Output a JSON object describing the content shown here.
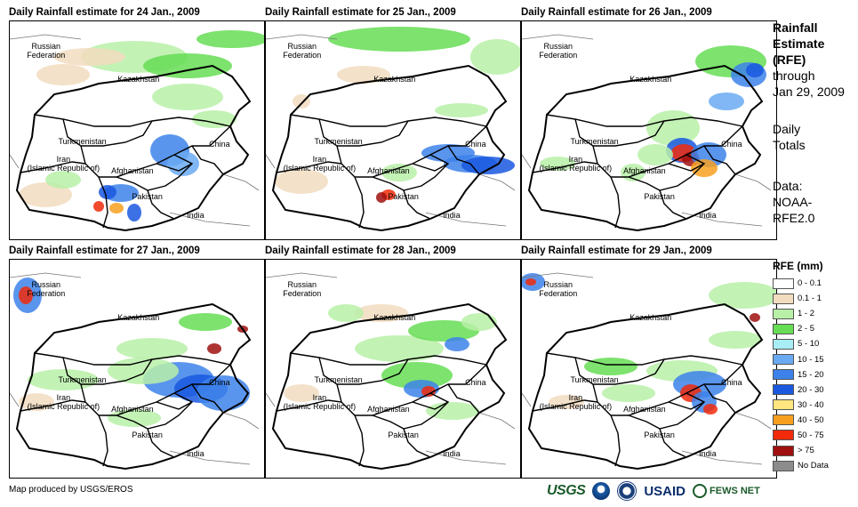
{
  "panels": [
    {
      "title": "Daily Rainfall estimate for 24 Jan., 2009"
    },
    {
      "title": "Daily Rainfall estimate for 25 Jan., 2009"
    },
    {
      "title": "Daily Rainfall estimate for 26 Jan., 2009"
    },
    {
      "title": "Daily Rainfall estimate for 27 Jan., 2009"
    },
    {
      "title": "Daily Rainfall estimate for 28 Jan., 2009"
    },
    {
      "title": "Daily Rainfall estimate for 29 Jan., 2009"
    }
  ],
  "map_labels": {
    "russia": "Russian\nFederation",
    "kazakhstan": "Kazakhstan",
    "turkmenistan": "Turkmenistan",
    "iran": "Iran\n(Islamic Republic of)",
    "afghanistan": "Afghanistan",
    "pakistan": "Pakistan",
    "china": "China",
    "india": "India"
  },
  "side": {
    "title": "Rainfall Estimate (RFE)",
    "through": "through",
    "date": "Jan 29, 2009",
    "daily": "Daily",
    "totals": "Totals",
    "data_label": "Data:",
    "data_source": "NOAA-RFE2.0"
  },
  "legend": {
    "title": "RFE (mm)",
    "items": [
      {
        "label": "0 - 0.1",
        "color": "#ffffff"
      },
      {
        "label": "0.1 - 1",
        "color": "#f2dcbf"
      },
      {
        "label": "1 - 2",
        "color": "#b8f0a8"
      },
      {
        "label": "2 - 5",
        "color": "#66dd55"
      },
      {
        "label": "5 - 10",
        "color": "#a8ecf5"
      },
      {
        "label": "10 - 15",
        "color": "#6aaaf2"
      },
      {
        "label": "15 - 20",
        "color": "#3d82ea"
      },
      {
        "label": "20 - 30",
        "color": "#1a58e0"
      },
      {
        "label": "30 - 40",
        "color": "#ffe680"
      },
      {
        "label": "40 - 50",
        "color": "#f7a020"
      },
      {
        "label": "50 - 75",
        "color": "#f02a0a"
      },
      {
        "label": "> 75",
        "color": "#a01010"
      },
      {
        "label": "No Data",
        "color": "#8c8c8c"
      }
    ]
  },
  "footer": {
    "credit": "Map produced by USGS/EROS"
  },
  "logos": {
    "usgs": "USGS",
    "usaid": "USAID",
    "fews": "FEWS NET"
  }
}
